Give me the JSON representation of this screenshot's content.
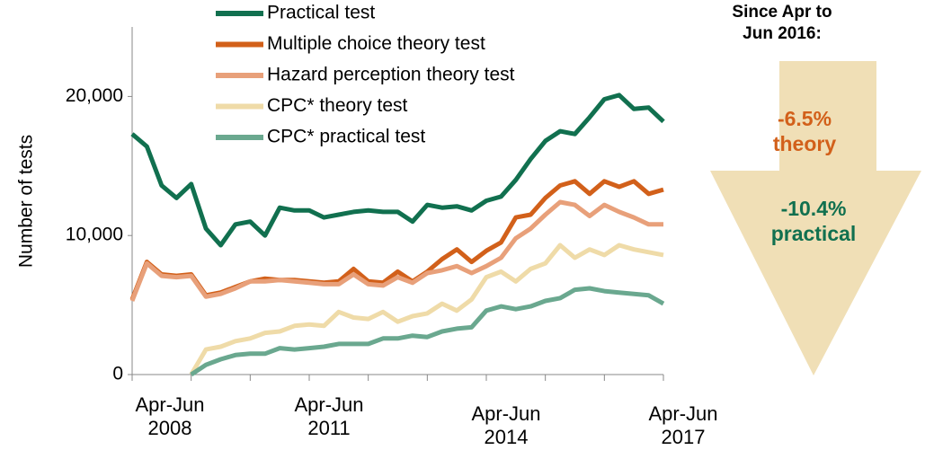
{
  "chart_data": {
    "type": "line",
    "y_label": "Number of tests",
    "categories": [
      "Apr-Jun 2008",
      null,
      null,
      null,
      null,
      null,
      null,
      null,
      null,
      null,
      null,
      null,
      "Apr-Jun 2011",
      null,
      null,
      null,
      null,
      null,
      null,
      null,
      null,
      null,
      null,
      null,
      "Apr-Jun 2014",
      null,
      null,
      null,
      null,
      null,
      null,
      null,
      null,
      null,
      null,
      null,
      "Apr-Jun 2017"
    ],
    "ylim": [
      0,
      25000
    ],
    "yticks": [
      0,
      {
        "value": 10000,
        "label": "10,000"
      },
      {
        "value": 20000,
        "label": "20,000"
      }
    ],
    "series": [
      {
        "name": "Practical test",
        "color": "#11704f",
        "values": [
          17300,
          16400,
          13600,
          12700,
          13700,
          10500,
          9300,
          10800,
          11000,
          10000,
          12000,
          11800,
          11800,
          11300,
          11500,
          11700,
          11800,
          11700,
          11700,
          11000,
          12200,
          12000,
          12100,
          11800,
          12500,
          12800,
          14000,
          15500,
          16800,
          17500,
          17300,
          18500,
          19800,
          20100,
          19100,
          19200,
          18200
        ]
      },
      {
        "name": "Multiple choice theory test",
        "color": "#d2601a",
        "values": [
          5400,
          8100,
          7200,
          7100,
          7200,
          5700,
          5900,
          6300,
          6700,
          6900,
          6800,
          6800,
          6700,
          6600,
          6700,
          7600,
          6700,
          6600,
          7400,
          6700,
          7400,
          8300,
          9000,
          8100,
          8900,
          9500,
          11300,
          11500,
          12700,
          13600,
          13900,
          13000,
          13900,
          13500,
          13900,
          13000,
          13300
        ]
      },
      {
        "name": "Hazard perception theory test",
        "color": "#e8a07a",
        "values": [
          5300,
          8000,
          7100,
          7000,
          7100,
          5600,
          5800,
          6200,
          6700,
          6700,
          6800,
          6700,
          6600,
          6500,
          6500,
          7200,
          6500,
          6400,
          7000,
          6600,
          7300,
          7500,
          7800,
          7300,
          7800,
          8400,
          9800,
          10500,
          11500,
          12400,
          12200,
          11400,
          12200,
          11700,
          11300,
          10800,
          10800
        ]
      },
      {
        "name": "CPC* theory test",
        "color": "#efdba8",
        "values": [
          null,
          null,
          null,
          null,
          0,
          1800,
          2000,
          2400,
          2600,
          3000,
          3100,
          3500,
          3600,
          3500,
          4500,
          4100,
          4000,
          4500,
          3800,
          4200,
          4400,
          5100,
          4600,
          5400,
          7000,
          7400,
          6700,
          7600,
          8000,
          9300,
          8400,
          9000,
          8600,
          9300,
          9000,
          8800,
          8600
        ]
      },
      {
        "name": "CPC* practical test",
        "color": "#6aa88f",
        "values": [
          null,
          null,
          null,
          null,
          0,
          700,
          1100,
          1400,
          1500,
          1500,
          1900,
          1800,
          1900,
          2000,
          2200,
          2200,
          2200,
          2600,
          2600,
          2800,
          2700,
          3100,
          3300,
          3400,
          4600,
          4900,
          4700,
          4900,
          5300,
          5500,
          6100,
          6200,
          6000,
          5900,
          5800,
          5700,
          5100
        ]
      }
    ],
    "annotations": [
      "Since Apr to Jun 2016:",
      "-6.5% theory",
      "-10.4% practical"
    ]
  }
}
